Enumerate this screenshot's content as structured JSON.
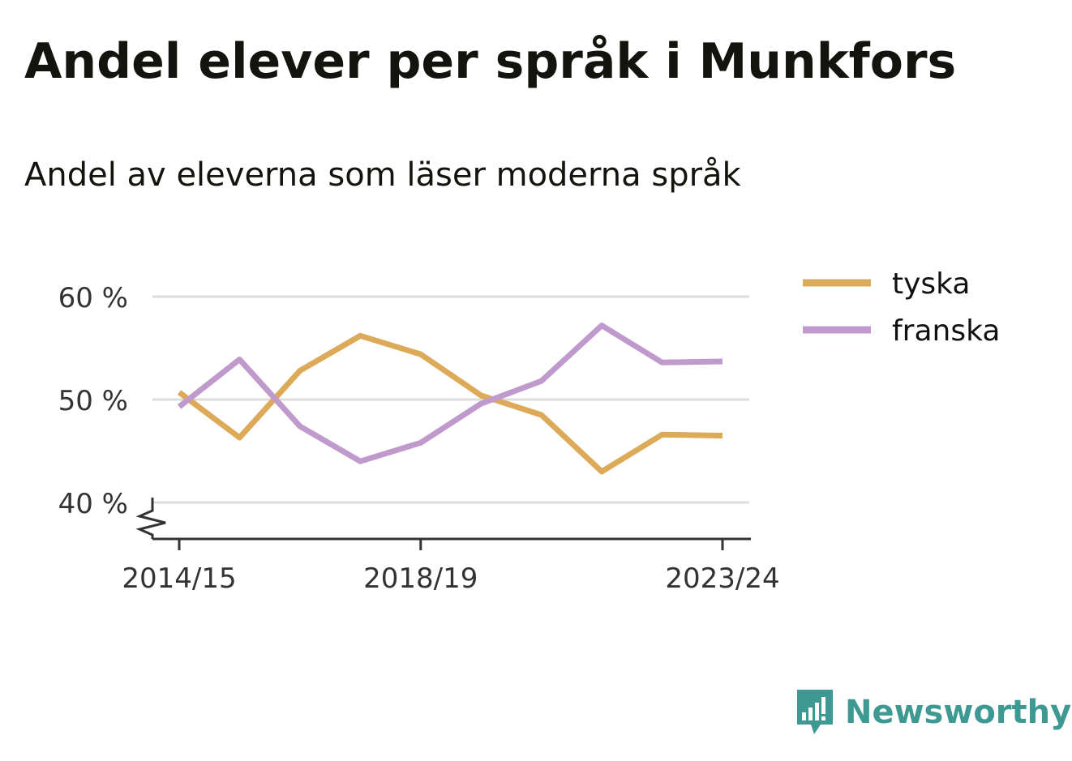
{
  "header": {
    "title": "Andel elever per språk i Munkfors",
    "subtitle": "Andel av eleverna som läser moderna språk"
  },
  "brand": {
    "name": "Newsworthy",
    "color": "#3f9993"
  },
  "chart_data": {
    "type": "line",
    "x": [
      "2014/15",
      "2015/16",
      "2016/17",
      "2017/18",
      "2018/19",
      "2019/20",
      "2020/21",
      "2021/22",
      "2022/23",
      "2023/24"
    ],
    "x_tick_labels": [
      "2014/15",
      "2018/19",
      "2023/24"
    ],
    "y_ticks": [
      40,
      50,
      60
    ],
    "y_tick_labels": [
      "40 %",
      "50 %",
      "60 %"
    ],
    "ylim": [
      40,
      60
    ],
    "y_axis_broken": true,
    "grid": true,
    "legend_position": "top-right",
    "series": [
      {
        "name": "tyska",
        "color": "#dcaa58",
        "values": [
          50.7,
          46.3,
          52.8,
          56.2,
          54.4,
          50.4,
          48.5,
          43.0,
          46.6,
          46.5
        ]
      },
      {
        "name": "franska",
        "color": "#c09acd",
        "values": [
          49.3,
          53.9,
          47.4,
          44.0,
          45.8,
          49.6,
          51.8,
          57.2,
          53.6,
          53.7
        ]
      }
    ]
  }
}
